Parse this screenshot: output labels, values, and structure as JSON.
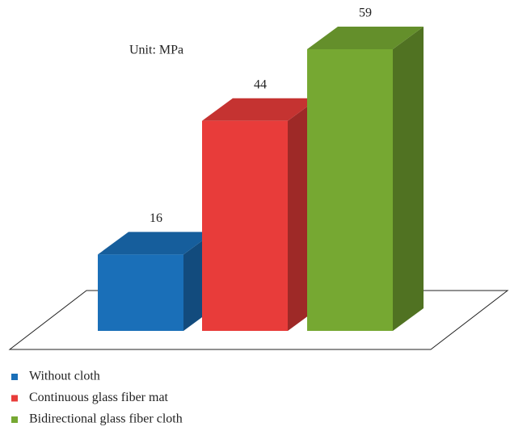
{
  "chart_data": {
    "type": "bar3d",
    "annotation": "Unit: MPa",
    "categories": [
      "Without cloth",
      "Continuous glass fiber mat",
      "Bidirectional glass fiber cloth"
    ],
    "values": [
      16,
      44,
      59
    ],
    "colors": [
      "#1a6fb8",
      "#e83c3a",
      "#76a832"
    ],
    "legend": "bottom-left"
  }
}
